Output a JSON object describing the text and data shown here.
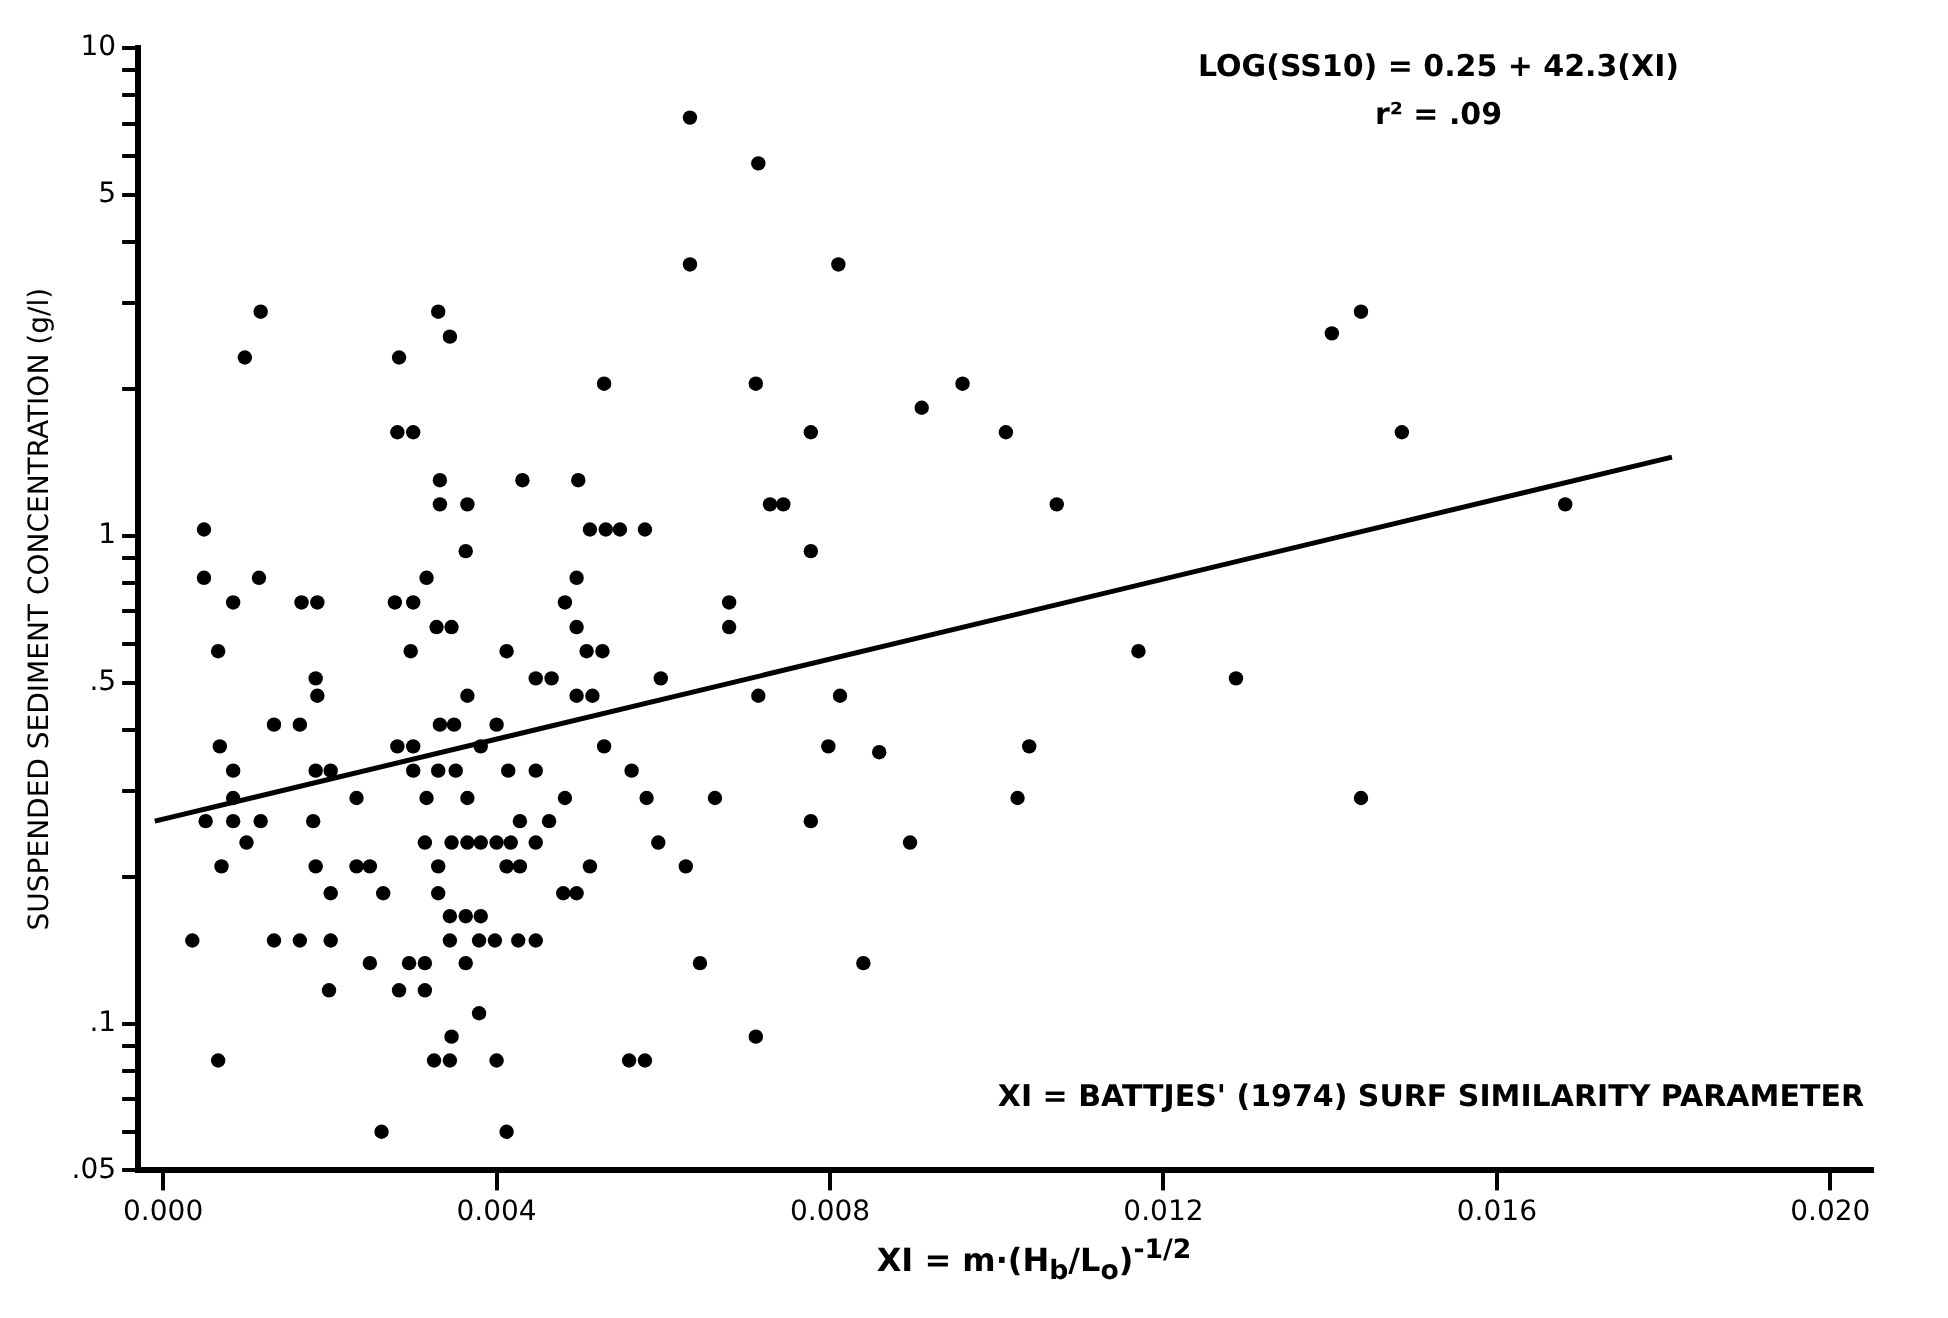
{
  "chart_data": {
    "type": "scatter",
    "xlabel": "XI = m·(H$_{b}$/L$_{o}$)$^{-1/2}$",
    "ylabel": "SUSPENDED SEDIMENT CONCENTRATION (g/l)",
    "annotations": [
      "LOG(SS10) = 0.25 + 42.3(XI)",
      "r² = .09",
      "XI = BATTJES' (1974) SURF SIMILARITY PARAMETER"
    ],
    "log": "y",
    "grid": false,
    "legend": false,
    "marker": "circle",
    "xlim": [
      -0.0003,
      0.0205
    ],
    "xticks": [
      {
        "value": 0,
        "label": "0.000"
      },
      {
        "value": 0.004,
        "label": "0.004"
      },
      {
        "value": 0.008,
        "label": "0.008"
      },
      {
        "value": 0.012,
        "label": "0.012"
      },
      {
        "value": 0.016,
        "label": "0.016"
      },
      {
        "value": 0.02,
        "label": "0.020"
      }
    ],
    "ylim": [
      0.05,
      10
    ],
    "yticks": [
      {
        "value": 0.05,
        "label": ".05"
      },
      {
        "value": 0.06,
        "label": null
      },
      {
        "value": 0.07,
        "label": null
      },
      {
        "value": 0.08,
        "label": null
      },
      {
        "value": 0.09,
        "label": null
      },
      {
        "value": 0.1,
        "label": ".1"
      },
      {
        "value": 0.2,
        "label": null
      },
      {
        "value": 0.3,
        "label": null
      },
      {
        "value": 0.4,
        "label": null
      },
      {
        "value": 0.5,
        "label": ".5"
      },
      {
        "value": 0.6,
        "label": null
      },
      {
        "value": 0.7,
        "label": null
      },
      {
        "value": 0.8,
        "label": null
      },
      {
        "value": 0.9,
        "label": null
      },
      1,
      {
        "value": 2,
        "label": null
      },
      {
        "value": 3,
        "label": null
      },
      {
        "value": 4,
        "label": null
      },
      5,
      {
        "value": 6,
        "label": null
      },
      {
        "value": 7,
        "label": null
      },
      {
        "value": 8,
        "label": null
      },
      {
        "value": 9,
        "label": null
      },
      10
    ],
    "series": [
      {
        "color": "#000000",
        "x": [
          0.00632,
          0.00714,
          0.00632,
          0.0081,
          0.00117,
          0.0033,
          0.00344,
          0.00098,
          0.00283,
          0.00529,
          0.00711,
          0.0091,
          0.00281,
          0.003,
          0.00777,
          0.00959,
          0.01011,
          0.01072,
          0.01402,
          0.01437,
          0.01486,
          0.01682,
          0.0117,
          0.01287,
          0.01039,
          0.01025,
          0.01437,
          0.00896,
          0.00332,
          0.00431,
          0.00049,
          0.00332,
          0.00365,
          0.00363,
          0.00049,
          0.00115,
          0.00316,
          0.00084,
          0.00166,
          0.00185,
          0.00278,
          0.003,
          0.00066,
          0.00297,
          0.00412,
          0.00328,
          0.00346,
          0.00447,
          0.00466,
          0.00183,
          0.00185,
          0.00133,
          0.00164,
          0.00332,
          0.00349,
          0.004,
          0.00365,
          0.00068,
          0.00281,
          0.003,
          0.00381,
          0.00084,
          0.00183,
          0.00201,
          0.003,
          0.0033,
          0.00351,
          0.00414,
          0.00447,
          0.00084,
          0.00232,
          0.00316,
          0.00365,
          0.00051,
          0.00084,
          0.00117,
          0.0018,
          0.00428,
          0.00463,
          0.00777,
          0.001,
          0.00314,
          0.00346,
          0.00365,
          0.00381,
          0.004,
          0.00417,
          0.00447,
          0.00594,
          0.0007,
          0.00183,
          0.00232,
          0.00248,
          0.0033,
          0.00412,
          0.00428,
          0.00512,
          0.00627,
          0.00201,
          0.00264,
          0.0033,
          0.0048,
          0.00496,
          0.00344,
          0.00363,
          0.00381,
          0.00035,
          0.00133,
          0.00164,
          0.00201,
          0.00344,
          0.00379,
          0.00398,
          0.00426,
          0.00447,
          0.00248,
          0.00295,
          0.00314,
          0.00363,
          0.00644,
          0.0084,
          0.00199,
          0.00283,
          0.00314,
          0.00379,
          0.00346,
          0.00711,
          0.00066,
          0.00325,
          0.00344,
          0.004,
          0.00559,
          0.00578,
          0.00262,
          0.00412,
          0.00498,
          0.00728,
          0.00744,
          0.00512,
          0.00531,
          0.00548,
          0.00578,
          0.00777,
          0.00496,
          0.00482,
          0.00679,
          0.00496,
          0.00679,
          0.00508,
          0.00527,
          0.00597,
          0.00496,
          0.00515,
          0.00714,
          0.00812,
          0.00529,
          0.00798,
          0.00859,
          0.00562,
          0.00482,
          0.0058,
          0.00662
        ],
        "values": [
          7.2,
          5.8,
          3.6,
          3.6,
          2.88,
          2.88,
          2.56,
          2.32,
          2.32,
          2.05,
          2.05,
          1.83,
          1.63,
          1.63,
          1.63,
          2.05,
          1.63,
          1.16,
          2.6,
          2.88,
          1.63,
          1.16,
          0.58,
          0.51,
          0.37,
          0.29,
          0.29,
          0.235,
          1.3,
          1.3,
          1.03,
          1.16,
          1.16,
          0.93,
          0.82,
          0.82,
          0.82,
          0.73,
          0.73,
          0.73,
          0.73,
          0.73,
          0.58,
          0.58,
          0.58,
          0.65,
          0.65,
          0.51,
          0.51,
          0.51,
          0.47,
          0.41,
          0.41,
          0.41,
          0.41,
          0.41,
          0.47,
          0.37,
          0.37,
          0.37,
          0.37,
          0.33,
          0.33,
          0.33,
          0.33,
          0.33,
          0.33,
          0.33,
          0.33,
          0.29,
          0.29,
          0.29,
          0.29,
          0.26,
          0.26,
          0.26,
          0.26,
          0.26,
          0.26,
          0.26,
          0.235,
          0.235,
          0.235,
          0.235,
          0.235,
          0.235,
          0.235,
          0.235,
          0.235,
          0.21,
          0.21,
          0.21,
          0.21,
          0.21,
          0.21,
          0.21,
          0.21,
          0.21,
          0.185,
          0.185,
          0.185,
          0.185,
          0.185,
          0.166,
          0.166,
          0.166,
          0.148,
          0.148,
          0.148,
          0.148,
          0.148,
          0.148,
          0.148,
          0.148,
          0.148,
          0.133,
          0.133,
          0.133,
          0.133,
          0.133,
          0.133,
          0.117,
          0.117,
          0.117,
          0.105,
          0.094,
          0.094,
          0.084,
          0.084,
          0.084,
          0.084,
          0.084,
          0.084,
          0.06,
          0.06,
          1.3,
          1.16,
          1.16,
          1.03,
          1.03,
          1.03,
          1.03,
          0.93,
          0.82,
          0.73,
          0.73,
          0.65,
          0.65,
          0.58,
          0.58,
          0.51,
          0.47,
          0.47,
          0.47,
          0.47,
          0.37,
          0.37,
          0.36,
          0.33,
          0.29,
          0.29,
          0.29
        ]
      },
      {
        "type": "line",
        "color": "#000000",
        "marker": "none",
        "x": [
          -0.0001,
          0.0181
        ],
        "values": [
          0.26,
          1.45
        ]
      }
    ]
  }
}
